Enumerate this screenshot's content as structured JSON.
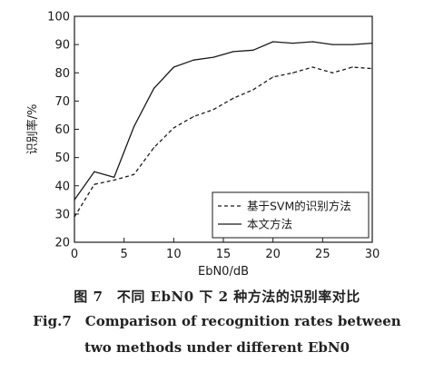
{
  "chart_data": {
    "type": "line",
    "x": [
      0,
      2,
      4,
      6,
      8,
      10,
      12,
      14,
      16,
      18,
      20,
      22,
      24,
      26,
      28,
      30
    ],
    "series": [
      {
        "name": "基于SVM的识别方法",
        "style": "dashed",
        "values": [
          29,
          40.5,
          42,
          44,
          53.5,
          60.5,
          64.5,
          67,
          71,
          74,
          78.5,
          80,
          82,
          80,
          82,
          81.5
        ]
      },
      {
        "name": "本文方法",
        "style": "solid",
        "values": [
          35,
          45,
          43,
          61,
          74.5,
          82,
          84.5,
          85.5,
          87.5,
          88,
          91,
          90.5,
          91,
          90,
          90,
          90.5
        ]
      }
    ],
    "xlabel": "EbN0/dB",
    "ylabel": "识别率/%",
    "xlim": [
      0,
      30
    ],
    "ylim": [
      20,
      100
    ],
    "xticks": [
      "0",
      "5",
      "10",
      "15",
      "20",
      "25",
      "30"
    ],
    "yticks": [
      "20",
      "30",
      "40",
      "50",
      "60",
      "70",
      "80",
      "90",
      "100"
    ],
    "grid": false,
    "legend_position": "bottom-right",
    "line_color": "#1a1a1a"
  },
  "caption": {
    "cn": "图 7　不同 EbN0 下 2 种方法的识别率对比",
    "en_line1": "Fig.7　Comparison of recognition rates between",
    "en_line2": "two methods under different EbN0"
  }
}
